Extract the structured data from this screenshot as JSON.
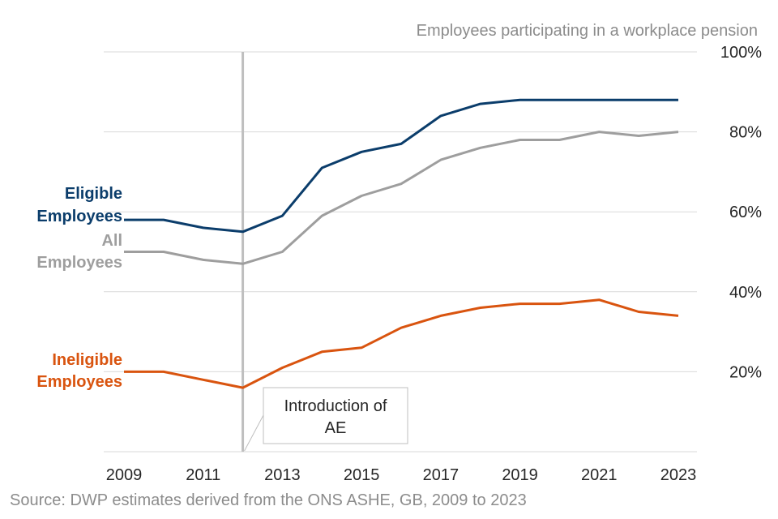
{
  "chart_data": {
    "type": "line",
    "title": "Employees participating in a workplace pension",
    "source": "Source: DWP estimates derived from the ONS ASHE, GB, 2009 to 2023",
    "x": [
      2009,
      2010,
      2011,
      2012,
      2013,
      2014,
      2015,
      2016,
      2017,
      2018,
      2019,
      2020,
      2021,
      2022,
      2023
    ],
    "x_tick_labels": [
      "2009",
      "2011",
      "2013",
      "2015",
      "2017",
      "2019",
      "2021",
      "2023"
    ],
    "x_ticks": [
      2009,
      2011,
      2013,
      2015,
      2017,
      2019,
      2021,
      2023
    ],
    "y_tick_labels": [
      "20%",
      "40%",
      "60%",
      "80%",
      "100%"
    ],
    "y_ticks": [
      20,
      40,
      60,
      80,
      100
    ],
    "ylim": [
      0,
      100
    ],
    "xlim": [
      2009,
      2023
    ],
    "grid": true,
    "series": [
      {
        "name": "Eligible Employees",
        "label_lines": [
          "Eligible",
          "Employees"
        ],
        "color": "#0b3d6b",
        "values": [
          58,
          58,
          56,
          55,
          59,
          71,
          75,
          77,
          84,
          87,
          88,
          88,
          88,
          88,
          88
        ]
      },
      {
        "name": "All Employees",
        "label_lines": [
          "All",
          "Employees"
        ],
        "color": "#9e9e9e",
        "values": [
          50,
          50,
          48,
          47,
          50,
          59,
          64,
          67,
          73,
          76,
          78,
          78,
          80,
          79,
          80
        ]
      },
      {
        "name": "Ineligible Employees",
        "label_lines": [
          "Ineligible",
          "Employees"
        ],
        "color": "#d9540f",
        "values": [
          20,
          20,
          18,
          16,
          21,
          25,
          26,
          31,
          34,
          36,
          37,
          37,
          38,
          35,
          34
        ]
      }
    ],
    "annotation": {
      "x": 2012,
      "lines": [
        "Introduction of",
        "AE"
      ],
      "line_color": "#bfbfbf"
    }
  }
}
